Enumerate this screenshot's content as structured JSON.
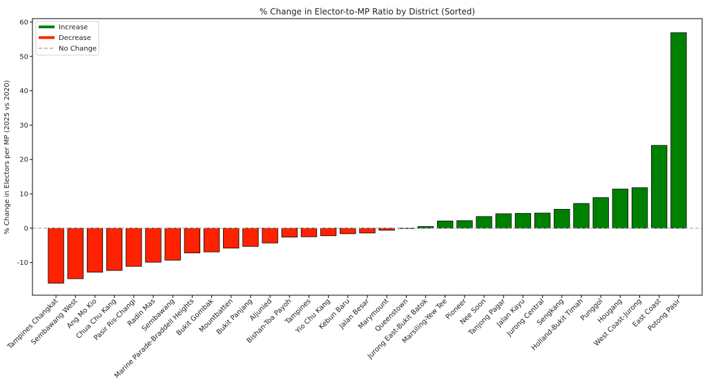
{
  "chart_data": {
    "type": "bar",
    "title": "% Change in Elector-to-MP Ratio by District (Sorted)",
    "xlabel": "",
    "ylabel": "% Change in Electors per MP (2025 vs 2020)",
    "ylim": [
      -19.5,
      61
    ],
    "yticks": [
      -10,
      0,
      10,
      20,
      30,
      40,
      50,
      60
    ],
    "grid": false,
    "legend_position": "top-left",
    "colors": {
      "increase": "#008000",
      "decrease": "#ff2200",
      "baseline": "#999999",
      "edge": "#000000"
    },
    "legend": [
      {
        "label": "Increase",
        "style": "increase"
      },
      {
        "label": "Decrease",
        "style": "decrease"
      },
      {
        "label": "No Change",
        "style": "baseline"
      }
    ],
    "categories": [
      "Tampines Changkat",
      "Sembawang West",
      "Ang Mo Kio",
      "Chua Chu Kang",
      "Pasir Ris-Changi",
      "Radin Mas",
      "Sembawang",
      "Marine Parade-Braddell Heights",
      "Bukit Gombak",
      "Mountbatten",
      "Bukit Panjang",
      "Aljunied",
      "Bishan-Toa Payoh",
      "Tampines",
      "Yio Chu Kang",
      "Kebun Baru",
      "Jalan Besar",
      "Marymount",
      "Queenstown",
      "Jurong East-Bukit Batok",
      "Marsiling-Yew Tee",
      "Pioneer",
      "Nee Soon",
      "Tanjong Pagar",
      "Jalan Kayu",
      "Jurong Central",
      "Sengkang",
      "Holland-Bukit Timah",
      "Punggol",
      "Hougang",
      "West Coast-Jurong",
      "East Coast",
      "Potong Pasir"
    ],
    "values": [
      -16.0,
      -14.7,
      -12.8,
      -12.3,
      -11.1,
      -9.9,
      -9.3,
      -7.2,
      -6.9,
      -5.8,
      -5.3,
      -4.3,
      -2.6,
      -2.5,
      -2.2,
      -1.6,
      -1.4,
      -0.6,
      -0.1,
      0.5,
      2.1,
      2.2,
      3.4,
      4.2,
      4.3,
      4.4,
      5.5,
      7.2,
      8.9,
      11.4,
      11.8,
      24.1,
      56.9
    ]
  }
}
